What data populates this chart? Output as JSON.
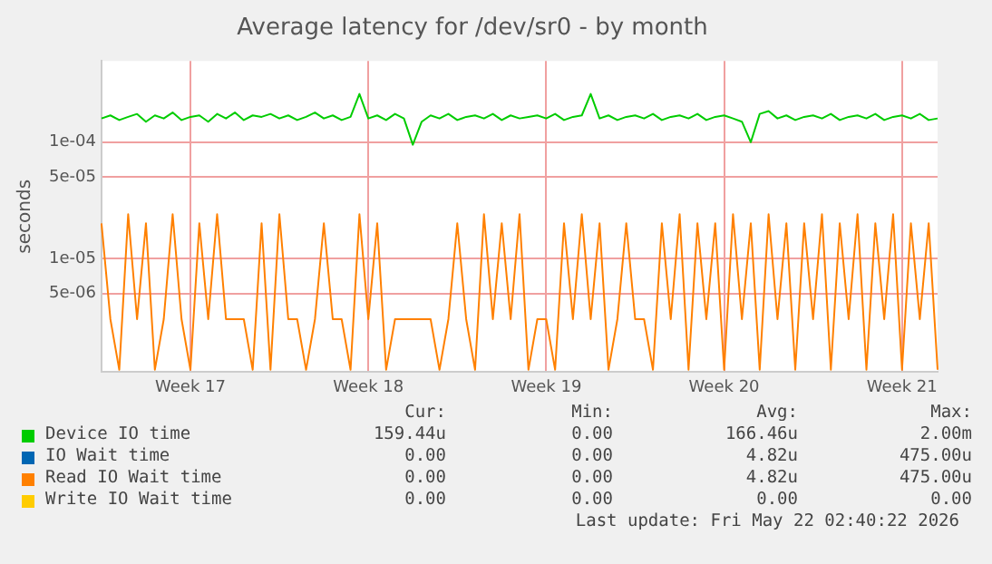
{
  "chart_data": {
    "type": "line",
    "title": "Average latency for /dev/sr0 - by month",
    "ylabel": "seconds",
    "log": true,
    "grid": true,
    "legend": "bottom",
    "line_style": "solid",
    "ylim": [
      1.05e-06,
      0.0005
    ],
    "yticks": [
      {
        "value": 5e-06,
        "label": "5e-06"
      },
      {
        "value": 1e-05,
        "label": "1e-05"
      },
      {
        "value": 5e-05,
        "label": "5e-05"
      },
      {
        "value": 0.0001,
        "label": "1e-04"
      }
    ],
    "categories": [
      null,
      null,
      null,
      null,
      null,
      null,
      null,
      null,
      null,
      null,
      "Week 17",
      null,
      null,
      null,
      null,
      null,
      null,
      null,
      null,
      null,
      null,
      null,
      null,
      null,
      null,
      null,
      null,
      null,
      null,
      null,
      "Week 18",
      null,
      null,
      null,
      null,
      null,
      null,
      null,
      null,
      null,
      null,
      null,
      null,
      null,
      null,
      null,
      null,
      null,
      null,
      null,
      "Week 19",
      null,
      null,
      null,
      null,
      null,
      null,
      null,
      null,
      null,
      null,
      null,
      null,
      null,
      null,
      null,
      null,
      null,
      null,
      null,
      "Week 20",
      null,
      null,
      null,
      null,
      null,
      null,
      null,
      null,
      null,
      null,
      null,
      null,
      null,
      null,
      null,
      null,
      null,
      null,
      null,
      "Week 21",
      null,
      null,
      null,
      null
    ],
    "series": [
      {
        "name": "Device IO time",
        "color": "#00cc00",
        "values": [
          0.00016,
          0.00017,
          0.000155,
          0.000165,
          0.000175,
          0.00015,
          0.00017,
          0.00016,
          0.00018,
          0.000155,
          0.000165,
          0.00017,
          0.00015,
          0.000175,
          0.00016,
          0.00018,
          0.000155,
          0.00017,
          0.000165,
          0.000175,
          0.00016,
          0.00017,
          0.000155,
          0.000165,
          0.00018,
          0.00016,
          0.00017,
          0.000155,
          0.000165,
          0.00026,
          0.00016,
          0.00017,
          0.000155,
          0.000175,
          0.00016,
          9.5e-05,
          0.00015,
          0.00017,
          0.00016,
          0.000175,
          0.000155,
          0.000165,
          0.00017,
          0.00016,
          0.000175,
          0.000155,
          0.00017,
          0.00016,
          0.000165,
          0.00017,
          0.00016,
          0.000175,
          0.000155,
          0.000165,
          0.00017,
          0.00026,
          0.00016,
          0.00017,
          0.000155,
          0.000165,
          0.00017,
          0.00016,
          0.000175,
          0.000155,
          0.000165,
          0.00017,
          0.00016,
          0.000175,
          0.000155,
          0.000165,
          0.00017,
          0.00016,
          0.00015,
          0.0001,
          0.000175,
          0.000185,
          0.00016,
          0.00017,
          0.000155,
          0.000165,
          0.00017,
          0.00016,
          0.000175,
          0.000155,
          0.000165,
          0.00017,
          0.00016,
          0.000175,
          0.000155,
          0.000165,
          0.00017,
          0.00016,
          0.000175,
          0.000155,
          0.00016
        ]
      },
      {
        "name": "IO Wait time",
        "color": "#0066b3",
        "values": [
          null,
          null,
          null,
          null,
          null,
          null,
          null,
          null,
          null,
          null,
          null,
          null,
          null,
          null,
          null,
          null,
          null,
          null,
          null,
          null,
          null,
          null,
          null,
          null,
          null,
          null,
          null,
          null,
          null,
          null,
          null,
          null,
          null,
          null,
          null,
          null,
          null,
          null,
          null,
          null,
          null,
          null,
          null,
          null,
          null,
          null,
          null,
          null,
          null,
          null,
          null,
          null,
          null,
          null,
          null,
          null,
          null,
          null,
          null,
          null,
          null,
          null,
          null,
          null,
          null,
          null,
          null,
          null,
          null,
          null,
          null,
          null,
          null,
          null,
          null,
          null,
          null,
          null,
          null,
          null,
          null,
          null,
          null,
          null,
          null,
          null,
          null,
          null,
          null,
          null,
          null,
          null,
          null,
          null,
          null
        ]
      },
      {
        "name": "Read IO Wait time",
        "color": "#ff8000",
        "values": [
          2e-05,
          3e-06,
          1.1e-06,
          2.4e-05,
          3e-06,
          2e-05,
          1.1e-06,
          3e-06,
          2.4e-05,
          3e-06,
          1.1e-06,
          2e-05,
          3e-06,
          2.4e-05,
          3e-06,
          3e-06,
          3e-06,
          1.1e-06,
          2e-05,
          1.1e-06,
          2.4e-05,
          3e-06,
          3e-06,
          1.1e-06,
          3e-06,
          2e-05,
          3e-06,
          3e-06,
          1.1e-06,
          2.4e-05,
          3e-06,
          2e-05,
          1.1e-06,
          3e-06,
          3e-06,
          3e-06,
          3e-06,
          3e-06,
          1.1e-06,
          3e-06,
          2e-05,
          3e-06,
          1.1e-06,
          2.4e-05,
          3e-06,
          2e-05,
          3e-06,
          2.4e-05,
          1.1e-06,
          3e-06,
          3e-06,
          1.1e-06,
          2e-05,
          3e-06,
          2.4e-05,
          3e-06,
          2e-05,
          1.1e-06,
          3e-06,
          2e-05,
          3e-06,
          3e-06,
          1.1e-06,
          2e-05,
          3e-06,
          2.4e-05,
          1.1e-06,
          2e-05,
          3e-06,
          2e-05,
          1.1e-06,
          2.4e-05,
          3e-06,
          2e-05,
          1.1e-06,
          2.4e-05,
          3e-06,
          2e-05,
          1.1e-06,
          2e-05,
          3e-06,
          2.4e-05,
          1.1e-06,
          2e-05,
          3e-06,
          2.4e-05,
          1.1e-06,
          2e-05,
          3e-06,
          2.4e-05,
          1.1e-06,
          2e-05,
          3e-06,
          2e-05,
          1.1e-06
        ]
      },
      {
        "name": "Write IO Wait time",
        "color": "#ffcc00",
        "values": [
          null,
          null,
          null,
          null,
          null,
          null,
          null,
          null,
          null,
          null,
          null,
          null,
          null,
          null,
          null,
          null,
          null,
          null,
          null,
          null,
          null,
          null,
          null,
          null,
          null,
          null,
          null,
          null,
          null,
          null,
          null,
          null,
          null,
          null,
          null,
          null,
          null,
          null,
          null,
          null,
          null,
          null,
          null,
          null,
          null,
          null,
          null,
          null,
          null,
          null,
          null,
          null,
          null,
          null,
          null,
          null,
          null,
          null,
          null,
          null,
          null,
          null,
          null,
          null,
          null,
          null,
          null,
          null,
          null,
          null,
          null,
          null,
          null,
          null,
          null,
          null,
          null,
          null,
          null,
          null,
          null,
          null,
          null,
          null,
          null,
          null,
          null,
          null,
          null,
          null,
          null,
          null,
          null,
          null,
          null
        ]
      }
    ],
    "annotations": [
      "Cur:",
      "Min:",
      "Avg:",
      "Max:",
      "159.44u",
      "0.00",
      "166.46u",
      "2.00m",
      "0.00",
      "0.00",
      "4.82u",
      "475.00u",
      "0.00",
      "0.00",
      "4.82u",
      "475.00u",
      "0.00",
      "0.00",
      "0.00",
      "0.00",
      "Last update: Fri May 22 02:40:22 2026"
    ]
  }
}
